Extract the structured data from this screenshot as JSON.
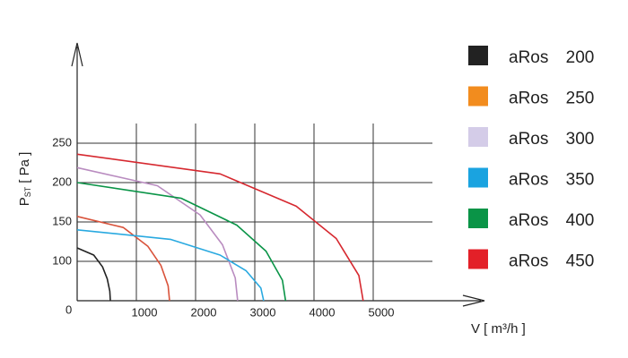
{
  "chart_data": {
    "type": "line",
    "ylabel": {
      "main": "P",
      "sub": "ST",
      "unit": "[ Pa ]"
    },
    "xlabel": "V [ m³/h ]",
    "origin_label": "0",
    "xlim": [
      0,
      6000
    ],
    "xticks": [
      1000,
      2000,
      3000,
      4000,
      5000
    ],
    "ylim": [
      50,
      275
    ],
    "yticks": [
      100,
      150,
      200,
      250
    ],
    "grid": true,
    "series": [
      {
        "name": "aRos 200",
        "color": "#222222",
        "legend_color": "#222222",
        "x": [
          0,
          280,
          429,
          507,
          552,
          560
        ],
        "values": [
          117,
          108,
          93,
          78,
          62,
          50
        ]
      },
      {
        "name": "aRos 250",
        "color": "#d9533b",
        "legend_color": "#f28c1e",
        "x": [
          0,
          780,
          1195,
          1413,
          1537,
          1560
        ],
        "values": [
          157,
          143,
          119,
          95,
          69,
          50
        ]
      },
      {
        "name": "aRos 300",
        "color": "#b98cc0",
        "legend_color": "#d4cce8",
        "x": [
          0,
          1355,
          2076,
          2455,
          2669,
          2710
        ],
        "values": [
          219,
          196,
          159,
          121,
          79,
          50
        ]
      },
      {
        "name": "aRos 350",
        "color": "#29a9e0",
        "legend_color": "#1aa3e0",
        "x": [
          0,
          1575,
          2413,
          2854,
          3103,
          3150
        ],
        "values": [
          140,
          128,
          108,
          88,
          66,
          50
        ]
      },
      {
        "name": "aRos 400",
        "color": "#0a9447",
        "legend_color": "#0a9447",
        "x": [
          0,
          1760,
          2696,
          3189,
          3467,
          3520
        ],
        "values": [
          200,
          180,
          146,
          113,
          76,
          50
        ]
      },
      {
        "name": "aRos 450",
        "color": "#d6282f",
        "legend_color": "#e32028",
        "x": [
          0,
          2415,
          3700,
          4376,
          4758,
          4830
        ],
        "values": [
          236,
          211,
          170,
          129,
          82,
          50
        ]
      }
    ]
  }
}
